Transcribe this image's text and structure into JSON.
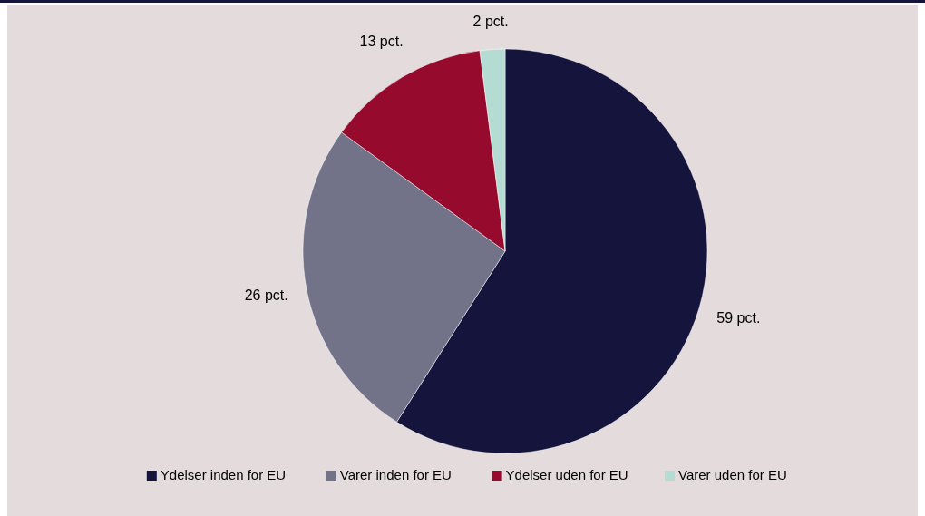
{
  "chart_data": {
    "type": "pie",
    "categories": [
      "Ydelser inden for EU",
      "Varer inden for EU",
      "Ydelser uden for EU",
      "Varer uden for EU"
    ],
    "values": [
      59,
      26,
      13,
      2
    ],
    "colors": [
      "#14143c",
      "#727289",
      "#960a2d",
      "#b4dcd2"
    ],
    "value_labels": [
      "59 pct.",
      "26 pct.",
      "13 pct.",
      "2 pct."
    ],
    "legend": "bottom"
  }
}
